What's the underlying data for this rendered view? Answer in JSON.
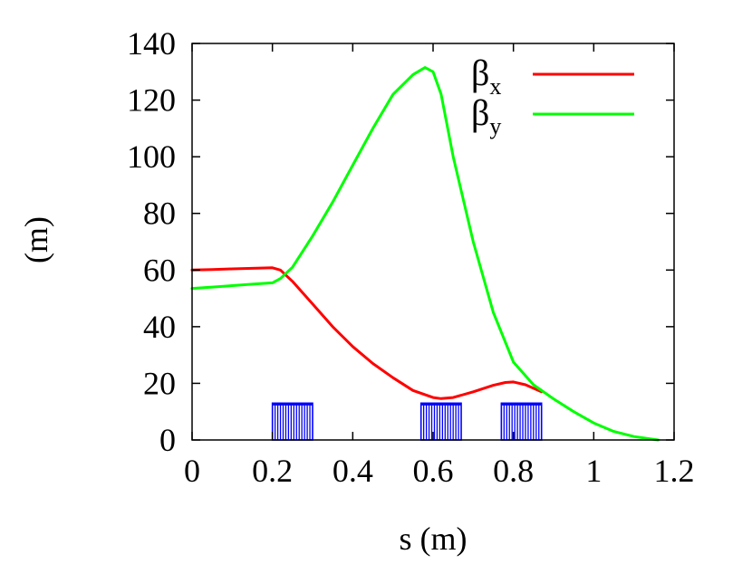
{
  "chart_data": {
    "type": "line",
    "title": "",
    "xlabel": "s (m)",
    "ylabel": "(m)",
    "xlim": [
      0,
      1.2
    ],
    "ylim": [
      0,
      140
    ],
    "xticks": [
      0,
      0.2,
      0.4,
      0.6,
      0.8,
      1.0,
      1.2
    ],
    "xtick_labels": [
      "0",
      "0.2",
      "0.4",
      "0.6",
      "0.8",
      "1",
      "1.2"
    ],
    "yticks": [
      0,
      20,
      40,
      60,
      80,
      100,
      120,
      140
    ],
    "ytick_labels": [
      "0",
      "20",
      "40",
      "60",
      "80",
      "100",
      "120",
      "140"
    ],
    "grid": false,
    "legend_position": "top-right",
    "series": [
      {
        "name": "βx",
        "name_base": "β",
        "name_sub": "x",
        "color": "#ff0000",
        "x": [
          0,
          0.05,
          0.1,
          0.15,
          0.2,
          0.22,
          0.25,
          0.3,
          0.35,
          0.4,
          0.45,
          0.5,
          0.55,
          0.6,
          0.62,
          0.65,
          0.7,
          0.75,
          0.78,
          0.8,
          0.83,
          0.87
        ],
        "y": [
          60,
          60.2,
          60.4,
          60.6,
          60.8,
          60,
          56,
          48,
          40,
          33,
          27,
          22,
          17.5,
          15,
          14.6,
          15,
          17,
          19.3,
          20.3,
          20.5,
          19.5,
          17
        ]
      },
      {
        "name": "βy",
        "name_base": "β",
        "name_sub": "y",
        "color": "#00ff00",
        "x": [
          0,
          0.05,
          0.1,
          0.15,
          0.2,
          0.22,
          0.25,
          0.3,
          0.35,
          0.4,
          0.45,
          0.5,
          0.55,
          0.58,
          0.6,
          0.62,
          0.65,
          0.7,
          0.75,
          0.8,
          0.85,
          0.9,
          0.95,
          1.0,
          1.05,
          1.1,
          1.15,
          1.16
        ],
        "y": [
          53.5,
          54,
          54.5,
          55,
          55.5,
          57,
          61,
          72,
          84,
          97,
          110,
          122,
          129,
          131.5,
          130,
          122,
          100,
          70,
          45,
          27.5,
          19.5,
          14.5,
          10,
          6,
          3,
          1.2,
          0.2,
          0
        ]
      }
    ],
    "elements": [
      {
        "type": "magnet",
        "s_start": 0.2,
        "s_end": 0.3,
        "height": 13,
        "color": "#0000ff"
      },
      {
        "type": "magnet",
        "s_start": 0.57,
        "s_end": 0.67,
        "height": 13,
        "color": "#0000ff"
      },
      {
        "type": "magnet",
        "s_start": 0.77,
        "s_end": 0.87,
        "height": 13,
        "color": "#0000ff"
      }
    ]
  }
}
